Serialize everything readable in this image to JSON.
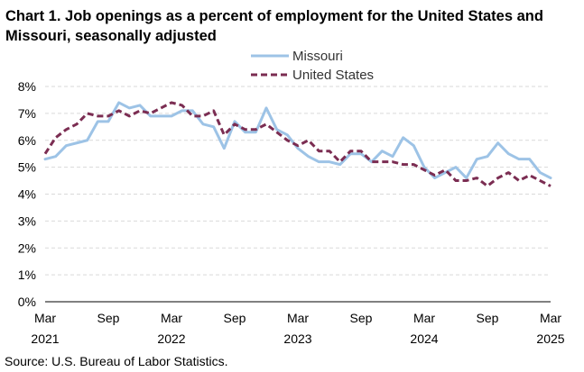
{
  "chart_data": {
    "type": "line",
    "title": "Chart 1. Job openings as a percent of employment for the United States and Missouri, seasonally adjusted",
    "xlabel": "",
    "ylabel": "",
    "ylim": [
      0,
      8
    ],
    "y_ticks": [
      "0%",
      "1%",
      "2%",
      "3%",
      "4%",
      "5%",
      "6%",
      "7%",
      "8%"
    ],
    "x_ticks": [
      {
        "index": 0,
        "month": "Mar",
        "year": "2021"
      },
      {
        "index": 6,
        "month": "Sep",
        "year": ""
      },
      {
        "index": 12,
        "month": "Mar",
        "year": "2022"
      },
      {
        "index": 18,
        "month": "Sep",
        "year": ""
      },
      {
        "index": 24,
        "month": "Mar",
        "year": "2023"
      },
      {
        "index": 30,
        "month": "Sep",
        "year": ""
      },
      {
        "index": 36,
        "month": "Mar",
        "year": "2024"
      },
      {
        "index": 42,
        "month": "Sep",
        "year": ""
      },
      {
        "index": 48,
        "month": "Mar",
        "year": "2025"
      }
    ],
    "grid": true,
    "legend_position": "top-right",
    "series": [
      {
        "name": "Missouri",
        "color": "#9DC3E6",
        "style": "solid",
        "values": [
          5.3,
          5.4,
          5.8,
          5.9,
          6.0,
          6.7,
          6.7,
          7.4,
          7.2,
          7.3,
          6.9,
          6.9,
          6.9,
          7.1,
          7.1,
          6.6,
          6.5,
          5.7,
          6.7,
          6.3,
          6.3,
          7.2,
          6.4,
          6.2,
          5.7,
          5.4,
          5.2,
          5.2,
          5.1,
          5.5,
          5.5,
          5.2,
          5.6,
          5.4,
          6.1,
          5.8,
          5.0,
          4.6,
          4.8,
          5.0,
          4.6,
          5.3,
          5.4,
          5.9,
          5.5,
          5.3,
          5.3,
          4.8,
          4.6
        ]
      },
      {
        "name": "United States",
        "color": "#7B2D52",
        "style": "dashed",
        "values": [
          5.5,
          6.1,
          6.4,
          6.6,
          7.0,
          6.9,
          6.9,
          7.1,
          6.9,
          7.1,
          7.0,
          7.2,
          7.4,
          7.3,
          6.9,
          6.9,
          7.1,
          6.2,
          6.6,
          6.4,
          6.4,
          6.6,
          6.3,
          6.0,
          5.8,
          6.0,
          5.6,
          5.6,
          5.2,
          5.6,
          5.6,
          5.2,
          5.2,
          5.2,
          5.1,
          5.1,
          4.9,
          4.7,
          4.9,
          4.5,
          4.5,
          4.6,
          4.3,
          4.6,
          4.8,
          4.5,
          4.7,
          4.5,
          4.3
        ]
      }
    ]
  },
  "source": "Source: U.S. Bureau of Labor Statistics."
}
